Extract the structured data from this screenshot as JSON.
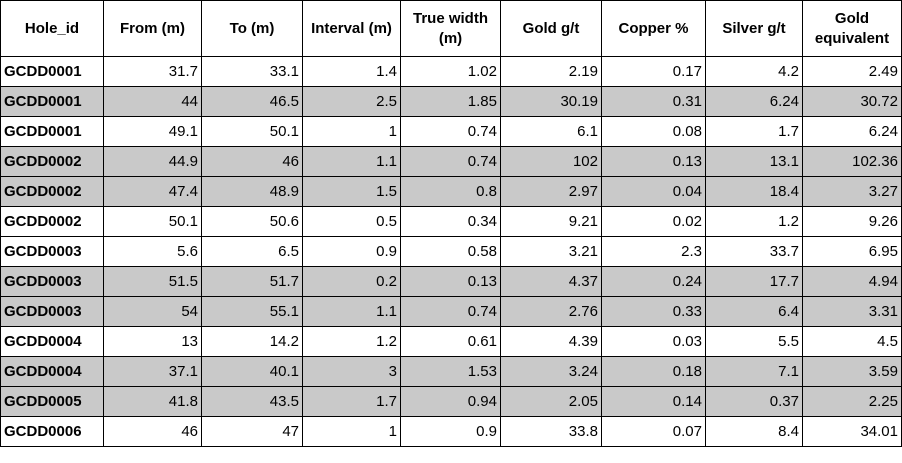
{
  "table": {
    "header": [
      "Hole_id",
      "From (m)",
      "To (m)",
      "Interval (m)",
      "True width (m)",
      "Gold g/t",
      "Copper %",
      "Silver g/t",
      "Gold equivalent"
    ],
    "rows": [
      [
        "GCDD0001",
        31.7,
        33.1,
        1.4,
        1.02,
        2.19,
        0.17,
        4.2,
        2.49
      ],
      [
        "GCDD0001",
        44,
        46.5,
        2.5,
        1.85,
        30.19,
        0.31,
        6.24,
        30.72
      ],
      [
        "GCDD0001",
        49.1,
        50.1,
        1,
        0.74,
        6.1,
        0.08,
        1.7,
        6.24
      ],
      [
        "GCDD0002",
        44.9,
        46,
        1.1,
        0.74,
        102,
        0.13,
        13.1,
        102.36
      ],
      [
        "GCDD0002",
        47.4,
        48.9,
        1.5,
        0.8,
        2.97,
        0.04,
        18.4,
        3.27
      ],
      [
        "GCDD0002",
        50.1,
        50.6,
        0.5,
        0.34,
        9.21,
        0.02,
        1.2,
        9.26
      ],
      [
        "GCDD0003",
        5.6,
        6.5,
        0.9,
        0.58,
        3.21,
        2.3,
        33.7,
        6.95
      ],
      [
        "GCDD0003",
        51.5,
        51.7,
        0.2,
        0.13,
        4.37,
        0.24,
        17.7,
        4.94
      ],
      [
        "GCDD0003",
        54,
        55.1,
        1.1,
        0.74,
        2.76,
        0.33,
        6.4,
        3.31
      ],
      [
        "GCDD0004",
        13,
        14.2,
        1.2,
        0.61,
        4.39,
        0.03,
        5.5,
        4.5
      ],
      [
        "GCDD0004",
        37.1,
        40.1,
        3,
        1.53,
        3.24,
        0.18,
        7.1,
        3.59
      ],
      [
        "GCDD0005",
        41.8,
        43.5,
        1.7,
        0.94,
        2.05,
        0.14,
        0.37,
        2.25
      ],
      [
        "GCDD0006",
        46,
        47,
        1,
        0.9,
        33.8,
        0.07,
        8.4,
        34.01
      ]
    ]
  }
}
